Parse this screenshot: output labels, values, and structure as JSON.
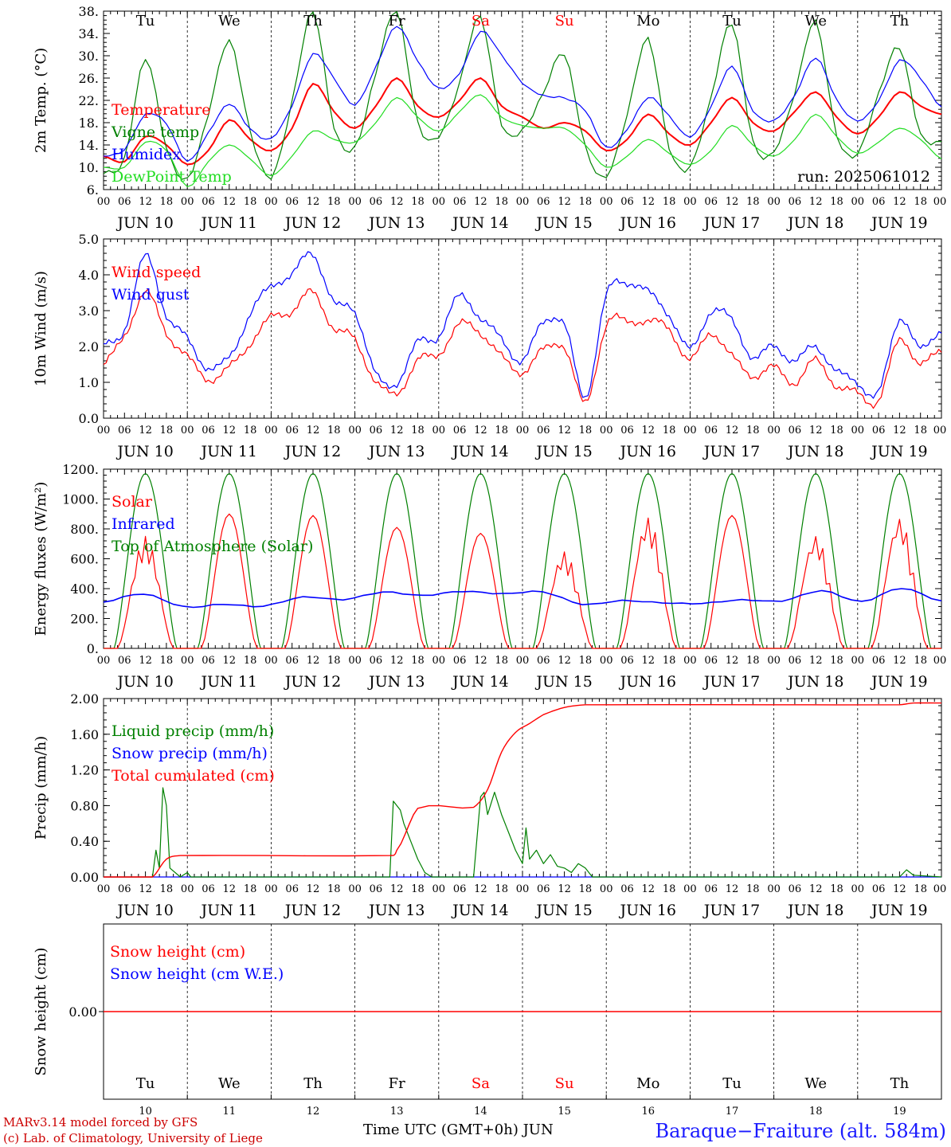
{
  "colors": {
    "red": "#ff0000",
    "blue": "#0000ff",
    "green": "#008000",
    "lightgreen": "#22dd22",
    "weekend": "#ff0000"
  },
  "run_label": "run: 2025061012",
  "days_top": [
    {
      "label": "Tu",
      "weekend": false
    },
    {
      "label": "We",
      "weekend": false
    },
    {
      "label": "Th",
      "weekend": false
    },
    {
      "label": "Fr",
      "weekend": false
    },
    {
      "label": "Sa",
      "weekend": true
    },
    {
      "label": "Su",
      "weekend": true
    },
    {
      "label": "Mo",
      "weekend": false
    },
    {
      "label": "Tu",
      "weekend": false
    },
    {
      "label": "We",
      "weekend": false
    },
    {
      "label": "Th",
      "weekend": false
    }
  ],
  "dates": [
    "JUN 10",
    "JUN 11",
    "JUN 12",
    "JUN 13",
    "JUN 14",
    "JUN 15",
    "JUN 16",
    "JUN 17",
    "JUN 18",
    "JUN 19"
  ],
  "hour_labels": [
    "00",
    "06",
    "12",
    "18"
  ],
  "bottom_day_numbers": [
    "10",
    "11",
    "12",
    "13",
    "14",
    "15",
    "16",
    "17",
    "18",
    "19"
  ],
  "footer": {
    "left_line1": "MARv3.14 model forced by GFS",
    "left_line2": "(c) Lab. of Climatology, University of Liege",
    "center": "Time UTC (GMT+0h) JUN",
    "right": "Baraque−Fraiture (alt. 584m)"
  },
  "chart_data": [
    {
      "type": "line",
      "ylabel": "2m Temp. (°C)",
      "y_tick_labels": [
        "6.",
        "10.",
        "14.",
        "18.",
        "22.",
        "26.",
        "30.",
        "34.",
        "38."
      ],
      "ylim": [
        6,
        38
      ],
      "x_hours": [
        0,
        6,
        12,
        18,
        24,
        30,
        36,
        42,
        48,
        54,
        60,
        66,
        72,
        78,
        84,
        90,
        96,
        102,
        108,
        114,
        120,
        126,
        132,
        138,
        144,
        150,
        156,
        162,
        168,
        174,
        180,
        186,
        192,
        198,
        204,
        210,
        216,
        222,
        228,
        234,
        240
      ],
      "series": [
        {
          "name": "Temperature",
          "color": "red",
          "values": [
            12,
            11,
            15.5,
            14,
            10.5,
            13,
            18.5,
            15,
            13,
            17,
            25,
            20,
            17,
            21,
            26,
            21,
            19,
            22,
            26,
            21,
            19,
            17,
            18,
            16.5,
            13,
            15,
            19.5,
            16,
            14,
            18,
            22.5,
            18,
            16.5,
            20,
            23.5,
            19,
            16,
            19,
            23.5,
            21,
            19.5
          ]
        },
        {
          "name": "Vigne temp",
          "color": "green",
          "values": [
            9,
            12,
            29.5,
            13,
            8,
            20,
            32.5,
            16,
            8.5,
            22,
            37.5,
            17,
            14,
            27,
            37.5,
            18,
            16,
            25,
            36.5,
            18,
            17,
            23,
            30,
            14,
            8.5,
            19,
            33,
            14,
            10,
            22,
            36,
            15,
            12.5,
            23,
            36.5,
            16,
            12,
            23,
            32,
            16,
            14
          ]
        },
        {
          "name": "Humidex",
          "color": "blue",
          "values": [
            12,
            13,
            19.5,
            18,
            11,
            16,
            21.5,
            17,
            15,
            21,
            30.5,
            26,
            21,
            28,
            35.5,
            29,
            24,
            27,
            34.5,
            30,
            25,
            23,
            22.5,
            20,
            13.5,
            17,
            22.5,
            19,
            15.5,
            21,
            28,
            20,
            18.5,
            23,
            29.5,
            22,
            18.5,
            22,
            29,
            26,
            21
          ]
        },
        {
          "name": "DewPoint Temp",
          "color": "lightgreen",
          "values": [
            10,
            10,
            14.5,
            13,
            6.5,
            11,
            14,
            11.5,
            8.5,
            12,
            16.5,
            15,
            14.5,
            18,
            22.5,
            19,
            16.5,
            20,
            23,
            19,
            17.5,
            17,
            17,
            14,
            10,
            12,
            15,
            12.5,
            10.5,
            13,
            17.5,
            14,
            12,
            15,
            19.5,
            15.5,
            12.5,
            14.5,
            17,
            15,
            11.5
          ]
        }
      ]
    },
    {
      "type": "line",
      "ylabel": "10m Wind (m/s)",
      "y_tick_labels": [
        "0.0",
        "1.0",
        "2.0",
        "3.0",
        "4.0",
        "5.0"
      ],
      "ylim": [
        0,
        5
      ],
      "x_hours": [
        0,
        6,
        12,
        18,
        24,
        30,
        36,
        42,
        48,
        54,
        60,
        66,
        72,
        78,
        84,
        90,
        96,
        102,
        108,
        114,
        120,
        126,
        132,
        138,
        144,
        150,
        156,
        162,
        168,
        174,
        180,
        186,
        192,
        198,
        204,
        210,
        216,
        222,
        228,
        234,
        240
      ],
      "series": [
        {
          "name": "Wind speed",
          "color": "red",
          "values": [
            1.5,
            2.3,
            3.5,
            2.4,
            1.7,
            1.1,
            1.4,
            2.1,
            2.8,
            3.0,
            3.5,
            2.5,
            2.2,
            1.0,
            0.7,
            1.6,
            1.8,
            2.6,
            2.4,
            1.7,
            1.3,
            1.9,
            2.0,
            0.4,
            2.6,
            2.7,
            2.7,
            2.5,
            1.6,
            2.4,
            1.7,
            1.2,
            1.4,
            1.0,
            1.6,
            0.9,
            0.7,
            0.5,
            2.2,
            1.5,
            1.9
          ]
        },
        {
          "name": "Wind gust",
          "color": "blue",
          "values": [
            2.0,
            2.5,
            4.5,
            2.9,
            2.2,
            1.4,
            1.7,
            2.9,
            3.7,
            4.0,
            4.6,
            3.2,
            3.0,
            1.2,
            1.0,
            2.1,
            2.3,
            3.4,
            2.8,
            2.2,
            1.6,
            2.7,
            2.6,
            0.6,
            3.4,
            3.8,
            3.5,
            2.9,
            1.9,
            3.0,
            2.7,
            1.7,
            2.0,
            1.6,
            2.0,
            1.3,
            1.0,
            0.7,
            2.8,
            1.9,
            2.5
          ]
        }
      ]
    },
    {
      "type": "line",
      "ylabel": "Energy fluxes (W/m²)",
      "y_tick_labels": [
        "0.",
        "200.",
        "400.",
        "600.",
        "800.",
        "1000.",
        "1200."
      ],
      "ylim": [
        0,
        1200
      ],
      "series": [
        {
          "name": "Solar",
          "color": "red",
          "peaks": [
            750,
            900,
            890,
            810,
            770,
            650,
            880,
            890,
            760,
            880
          ]
        },
        {
          "name": "Infrared",
          "color": "blue",
          "values": [
            310,
            360,
            280,
            300,
            280,
            340,
            330,
            380,
            350,
            380,
            370,
            380,
            290,
            320,
            310,
            300,
            320,
            320,
            390,
            310,
            400,
            320
          ]
        },
        {
          "name": "Top of Atmosphere (Solar)",
          "color": "green",
          "peak": 1170,
          "sunrise_hour": 3,
          "sunset_hour": 21
        }
      ]
    },
    {
      "type": "line",
      "ylabel": "Precip (mm/h)",
      "y_tick_labels": [
        "0.00",
        "0.40",
        "0.80",
        "1.20",
        "1.60",
        "2.00"
      ],
      "ylim": [
        0,
        2
      ],
      "series": [
        {
          "name": "Liquid precip (mm/h)",
          "color": "green",
          "points": [
            [
              0,
              0
            ],
            [
              14,
              0
            ],
            [
              15,
              0.3
            ],
            [
              16,
              0.1
            ],
            [
              17,
              1.0
            ],
            [
              18,
              0.8
            ],
            [
              19,
              0.1
            ],
            [
              22,
              0
            ],
            [
              24,
              0.05
            ],
            [
              25,
              0
            ],
            [
              82,
              0
            ],
            [
              83,
              0.85
            ],
            [
              84,
              0.8
            ],
            [
              85,
              0.75
            ],
            [
              86,
              0.6
            ],
            [
              88,
              0.4
            ],
            [
              90,
              0.2
            ],
            [
              92,
              0.05
            ],
            [
              94,
              0
            ],
            [
              106,
              0
            ],
            [
              108,
              0.9
            ],
            [
              109,
              0.95
            ],
            [
              110,
              0.7
            ],
            [
              112,
              0.95
            ],
            [
              114,
              0.7
            ],
            [
              116,
              0.5
            ],
            [
              118,
              0.3
            ],
            [
              120,
              0.15
            ],
            [
              121,
              0.55
            ],
            [
              122,
              0.2
            ],
            [
              124,
              0.3
            ],
            [
              126,
              0.15
            ],
            [
              128,
              0.25
            ],
            [
              130,
              0.12
            ],
            [
              132,
              0.1
            ],
            [
              134,
              0.05
            ],
            [
              136,
              0.15
            ],
            [
              138,
              0.1
            ],
            [
              140,
              0
            ],
            [
              228,
              0
            ],
            [
              230,
              0.08
            ],
            [
              232,
              0.02
            ],
            [
              240,
              0
            ]
          ]
        },
        {
          "name": "Snow precip (mm/h)",
          "color": "blue",
          "values": [
            0
          ]
        },
        {
          "name": "Total cumulated (cm)",
          "color": "red",
          "points": [
            [
              0,
              0
            ],
            [
              14,
              0
            ],
            [
              18,
              0.2
            ],
            [
              22,
              0.24
            ],
            [
              82,
              0.24
            ],
            [
              84,
              0.3
            ],
            [
              90,
              0.77
            ],
            [
              106,
              0.78
            ],
            [
              110,
              0.98
            ],
            [
              114,
              1.4
            ],
            [
              118,
              1.62
            ],
            [
              122,
              1.72
            ],
            [
              126,
              1.82
            ],
            [
              132,
              1.9
            ],
            [
              138,
              1.93
            ],
            [
              228,
              1.93
            ],
            [
              232,
              1.95
            ],
            [
              240,
              1.95
            ]
          ]
        }
      ]
    },
    {
      "type": "line",
      "ylabel": "Snow height (cm)",
      "y_tick_labels": [
        "0.00"
      ],
      "series": [
        {
          "name": "Snow height (cm)",
          "color": "red",
          "values": [
            0
          ]
        },
        {
          "name": "Snow height (cm W.E.)",
          "color": "blue",
          "values": [
            0
          ]
        }
      ]
    }
  ]
}
